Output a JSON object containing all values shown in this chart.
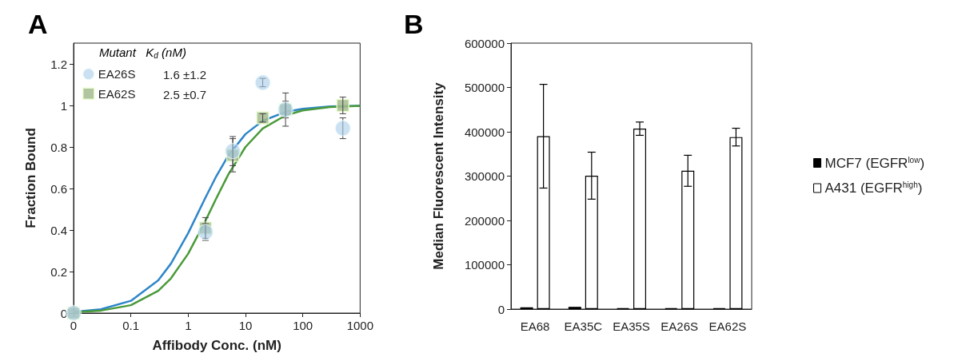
{
  "chart_data": [
    {
      "type": "scatter",
      "title": "A",
      "xlabel": "Affibody Conc. (nM)",
      "ylabel": "Fraction Bound",
      "legend_title": "Mutant   K$_{d}$ (nM)",
      "annotations": [
        "1.6 ±1.2",
        "2.5 ±0.7"
      ],
      "log": "x",
      "xlim": [
        0.01,
        1000
      ],
      "xticks": [
        {
          "value": 0.01,
          "label": "0"
        },
        0.1,
        1,
        10,
        100,
        1000
      ],
      "ylim": [
        0,
        1.3
      ],
      "yticks": [
        0,
        0.2,
        0.4,
        0.6,
        0.8,
        1,
        1.2
      ],
      "legend": "top left",
      "series": [
        {
          "name": "EA26S",
          "type": "scatter",
          "marker": "circle",
          "color": "#a9cbe8",
          "x": [
            0.01,
            2,
            6,
            20,
            50,
            500
          ],
          "values": [
            0,
            0.39,
            0.78,
            1.11,
            0.98,
            0.89
          ],
          "errors": [
            null,
            0.04,
            0.07,
            0.02,
            0.04,
            0.05
          ]
        },
        {
          "name": "EA62S",
          "type": "scatter",
          "marker": "square",
          "color": "#a3bb8f",
          "x": [
            0.01,
            2,
            6,
            20,
            50,
            500
          ],
          "values": [
            0,
            0.41,
            0.76,
            0.94,
            0.98,
            1.0
          ],
          "errors": [
            null,
            0.05,
            0.08,
            0.02,
            0.08,
            0.04
          ]
        },
        {
          "type": "line",
          "marker": "none",
          "color": "#2e86c9",
          "x": [
            0.01,
            0.03,
            0.1,
            0.3,
            0.5,
            1,
            2,
            3,
            5,
            10,
            20,
            50,
            100,
            300,
            1000
          ],
          "values": [
            0.006,
            0.018,
            0.059,
            0.158,
            0.238,
            0.385,
            0.556,
            0.652,
            0.758,
            0.862,
            0.926,
            0.969,
            0.984,
            0.995,
            0.998
          ]
        },
        {
          "type": "line",
          "marker": "none",
          "color": "#4a9a3a",
          "x": [
            0.01,
            0.03,
            0.1,
            0.3,
            0.5,
            1,
            2,
            3,
            5,
            10,
            20,
            50,
            100,
            300,
            1000
          ],
          "values": [
            0.004,
            0.012,
            0.038,
            0.107,
            0.167,
            0.286,
            0.444,
            0.545,
            0.667,
            0.8,
            0.889,
            0.952,
            0.976,
            0.992,
            0.998
          ]
        }
      ]
    },
    {
      "type": "bar",
      "title": "B",
      "ylabel": "Median Fluorescent Intensity",
      "categories": [
        "EA68",
        "EA35C",
        "EA35S",
        "EA26S",
        "EA62S"
      ],
      "ylim": [
        0,
        600000
      ],
      "yticks": [
        0,
        100000,
        200000,
        300000,
        400000,
        500000,
        600000
      ],
      "legend": "right",
      "series": [
        {
          "name": "MCF7 (EGFR$^{low}$)",
          "color": "#000000",
          "values": [
            4000,
            5000,
            2000,
            2000,
            2000
          ]
        },
        {
          "name": "A431 (EGFR$^{high}$)",
          "color": "#ffffff",
          "values": [
            390000,
            301000,
            407000,
            312000,
            388000
          ],
          "errors": [
            117000,
            53000,
            15000,
            35000,
            20000
          ]
        }
      ]
    }
  ]
}
